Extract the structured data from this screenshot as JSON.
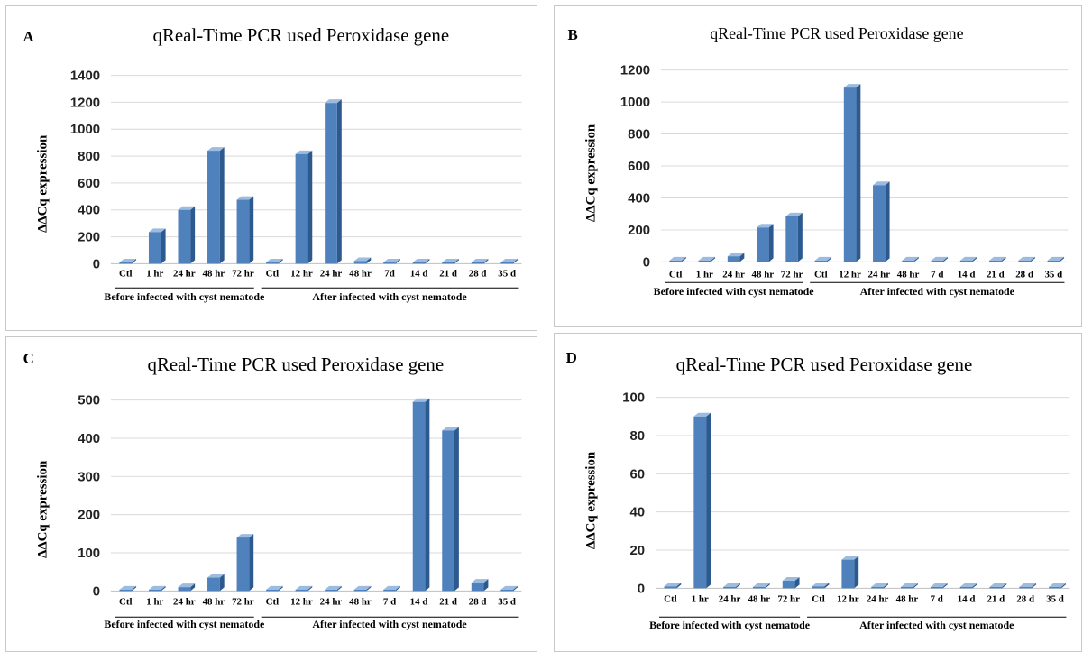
{
  "colors": {
    "bar_front": "#4f81bd",
    "bar_side": "#2c5a8f",
    "bar_top": "#9bbbe0",
    "grid": "#d9d9d9"
  },
  "chart_data": [
    {
      "panel": "A",
      "type": "bar",
      "title": "qReal-Time  PCR used Peroxidase gene",
      "ylabel": "ΔΔCq  expression",
      "ylim": [
        0,
        1400
      ],
      "yticks": [
        "0",
        "200",
        "400",
        "600",
        "800",
        "1000",
        "1200",
        "1400"
      ],
      "grid": true,
      "categories": [
        "Ctl",
        "1 hr",
        "24 hr",
        "48 hr",
        "72 hr",
        "Ctl",
        "12 hr",
        "24 hr",
        "48 hr",
        "7d",
        "14 d",
        "21 d",
        "28 d",
        "35 d"
      ],
      "values": [
        0,
        235,
        400,
        840,
        475,
        0,
        815,
        1195,
        20,
        0,
        0,
        0,
        0,
        0
      ],
      "groups": [
        {
          "label": "Before  infected  with  cyst nematode",
          "from": 0,
          "to": 4
        },
        {
          "label": "After  infected with cyst nematode",
          "from": 5,
          "to": 13
        }
      ]
    },
    {
      "panel": "B",
      "type": "bar",
      "title": "qReal-Time  PCR used Peroxidase  gene",
      "ylabel": "ΔΔCq  expression",
      "ylim": [
        0,
        1200
      ],
      "yticks": [
        "0",
        "200",
        "400",
        "600",
        "800",
        "1000",
        "1200"
      ],
      "grid": true,
      "categories": [
        "Ctl",
        "1 hr",
        "24 hr",
        "48 hr",
        "72 hr",
        "Ctl",
        "12 hr",
        "24 hr",
        "48 hr",
        "7 d",
        "14 d",
        "21 d",
        "28 d",
        "35 d"
      ],
      "values": [
        0,
        0,
        35,
        215,
        285,
        0,
        1090,
        480,
        0,
        0,
        0,
        0,
        0,
        0
      ],
      "groups": [
        {
          "label": "Before infected with cyst nematode",
          "from": 0,
          "to": 4
        },
        {
          "label": "After   infected  with  cyst nematode",
          "from": 5,
          "to": 13
        }
      ]
    },
    {
      "panel": "C",
      "type": "bar",
      "title": "qReal-Time  PCR used Peroxidase gene",
      "ylabel": "ΔΔCq  expression",
      "ylim": [
        0,
        500
      ],
      "yticks": [
        "0",
        "100",
        "200",
        "300",
        "400",
        "500"
      ],
      "grid": true,
      "categories": [
        "Ctl",
        "1 hr",
        "24 hr",
        "48 hr",
        "72 hr",
        "Ctl",
        "12 hr",
        "24 hr",
        "48 hr",
        "7 d",
        "14 d",
        "21 d",
        "28 d",
        "35 d"
      ],
      "values": [
        0,
        0,
        10,
        35,
        140,
        0,
        0,
        0,
        0,
        0,
        495,
        420,
        22,
        0
      ],
      "groups": [
        {
          "label": "Before infected with cyst nematode",
          "from": 0,
          "to": 4
        },
        {
          "label": "After  infected  with  cyst nematode",
          "from": 5,
          "to": 13
        }
      ]
    },
    {
      "panel": "D",
      "type": "bar",
      "title": "qReal-Time  PCR used Peroxidase gene",
      "ylabel": "ΔΔCq  expression",
      "ylim": [
        0,
        100
      ],
      "yticks": [
        "0",
        "20",
        "40",
        "60",
        "80",
        "100"
      ],
      "grid": true,
      "categories": [
        "Ctl",
        "1 hr",
        "24 hr",
        "48 hr",
        "72 hr",
        "Ctl",
        "12 hr",
        "24 hr",
        "48 hr",
        "7 d",
        "14 d",
        "21 d",
        "28 d",
        "35 d"
      ],
      "values": [
        1,
        90,
        0,
        0,
        4,
        1,
        15,
        0,
        0,
        0,
        0,
        0,
        0,
        0
      ],
      "groups": [
        {
          "label": "Before infected with cyst nematode",
          "from": 0,
          "to": 4
        },
        {
          "label": "After   infected  with  cyst nematode",
          "from": 5,
          "to": 13
        }
      ]
    }
  ]
}
